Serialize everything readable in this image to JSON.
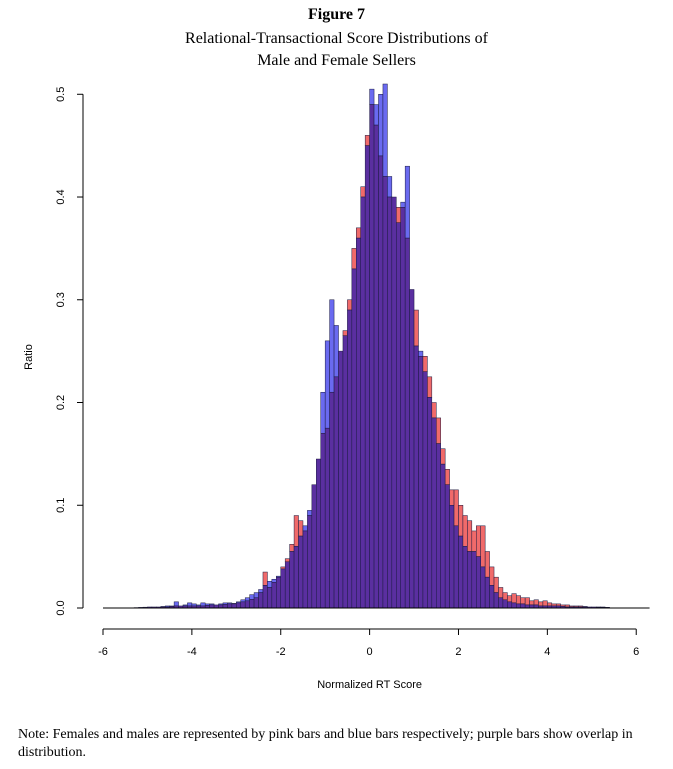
{
  "figure": {
    "label": "Figure 7",
    "title_line1": "Relational-Transactional Score Distributions of",
    "title_line2": "Male and Female Sellers",
    "note": "Note: Females and males are represented by pink bars and blue bars respectively; purple bars show overlap in distribution."
  },
  "colors": {
    "female": "#f06a6a",
    "male": "#6a6af0",
    "overlap": "#5a2fa0",
    "edge": "#1a1a40"
  },
  "chart_data": {
    "type": "bar",
    "title": "Relational-Transactional Score Distributions of Male and Female Sellers",
    "xlabel": "Normalized RT Score",
    "ylabel": "Ratio",
    "xlim": [
      -6,
      6.4
    ],
    "ylim": [
      0,
      0.51
    ],
    "xticks": [
      "-6",
      "-4",
      "-2",
      "0",
      "2",
      "4",
      "6"
    ],
    "yticks": [
      "0.0",
      "0.1",
      "0.2",
      "0.3",
      "0.4",
      "0.5"
    ],
    "bin_width": 0.1,
    "series": [
      {
        "name": "Females",
        "points": [
          [
            -6.0,
            0.0
          ],
          [
            -5.5,
            0.0
          ],
          [
            -5.0,
            0.001
          ],
          [
            -4.8,
            0.001
          ],
          [
            -4.6,
            0.001
          ],
          [
            -4.4,
            0.002
          ],
          [
            -4.2,
            0.002
          ],
          [
            -4.0,
            0.002
          ],
          [
            -3.8,
            0.002
          ],
          [
            -3.6,
            0.003
          ],
          [
            -3.4,
            0.003
          ],
          [
            -3.2,
            0.004
          ],
          [
            -3.0,
            0.005
          ],
          [
            -2.8,
            0.007
          ],
          [
            -2.6,
            0.01
          ],
          [
            -2.5,
            0.015
          ],
          [
            -2.4,
            0.035
          ],
          [
            -2.3,
            0.02
          ],
          [
            -2.2,
            0.025
          ],
          [
            -2.1,
            0.03
          ],
          [
            -2.0,
            0.04
          ],
          [
            -1.9,
            0.048
          ],
          [
            -1.8,
            0.062
          ],
          [
            -1.7,
            0.09
          ],
          [
            -1.6,
            0.085
          ],
          [
            -1.5,
            0.075
          ],
          [
            -1.4,
            0.09
          ],
          [
            -1.3,
            0.12
          ],
          [
            -1.2,
            0.145
          ],
          [
            -1.1,
            0.17
          ],
          [
            -1.0,
            0.175
          ],
          [
            -0.9,
            0.21
          ],
          [
            -0.8,
            0.225
          ],
          [
            -0.7,
            0.25
          ],
          [
            -0.6,
            0.27
          ],
          [
            -0.5,
            0.3
          ],
          [
            -0.4,
            0.35
          ],
          [
            -0.3,
            0.37
          ],
          [
            -0.2,
            0.41
          ],
          [
            -0.1,
            0.46
          ],
          [
            0.0,
            0.49
          ],
          [
            0.1,
            0.47
          ],
          [
            0.2,
            0.44
          ],
          [
            0.3,
            0.42
          ],
          [
            0.4,
            0.4
          ],
          [
            0.5,
            0.4
          ],
          [
            0.6,
            0.39
          ],
          [
            0.7,
            0.39
          ],
          [
            0.8,
            0.36
          ],
          [
            0.9,
            0.31
          ],
          [
            1.0,
            0.29
          ],
          [
            1.1,
            0.245
          ],
          [
            1.2,
            0.245
          ],
          [
            1.3,
            0.225
          ],
          [
            1.4,
            0.2
          ],
          [
            1.5,
            0.185
          ],
          [
            1.6,
            0.155
          ],
          [
            1.7,
            0.135
          ],
          [
            1.8,
            0.115
          ],
          [
            1.9,
            0.115
          ],
          [
            2.0,
            0.1
          ],
          [
            2.1,
            0.09
          ],
          [
            2.2,
            0.085
          ],
          [
            2.3,
            0.075
          ],
          [
            2.4,
            0.08
          ],
          [
            2.5,
            0.08
          ],
          [
            2.6,
            0.055
          ],
          [
            2.7,
            0.04
          ],
          [
            2.8,
            0.03
          ],
          [
            2.9,
            0.02
          ],
          [
            3.0,
            0.015
          ],
          [
            3.1,
            0.012
          ],
          [
            3.2,
            0.014
          ],
          [
            3.3,
            0.012
          ],
          [
            3.4,
            0.01
          ],
          [
            3.5,
            0.01
          ],
          [
            3.6,
            0.007
          ],
          [
            3.7,
            0.008
          ],
          [
            3.8,
            0.006
          ],
          [
            3.9,
            0.007
          ],
          [
            4.0,
            0.005
          ],
          [
            4.1,
            0.004
          ],
          [
            4.2,
            0.004
          ],
          [
            4.3,
            0.003
          ],
          [
            4.4,
            0.003
          ],
          [
            4.5,
            0.002
          ],
          [
            4.7,
            0.002
          ],
          [
            4.9,
            0.001
          ],
          [
            5.2,
            0.001
          ],
          [
            5.5,
            0.0
          ],
          [
            6.3,
            0.0
          ]
        ]
      },
      {
        "name": "Males",
        "points": [
          [
            -6.0,
            0.0
          ],
          [
            -5.5,
            0.0
          ],
          [
            -5.0,
            0.001
          ],
          [
            -4.8,
            0.001
          ],
          [
            -4.6,
            0.002
          ],
          [
            -4.5,
            0.002
          ],
          [
            -4.4,
            0.006
          ],
          [
            -4.3,
            0.002
          ],
          [
            -4.2,
            0.003
          ],
          [
            -4.1,
            0.005
          ],
          [
            -4.0,
            0.004
          ],
          [
            -3.9,
            0.003
          ],
          [
            -3.8,
            0.005
          ],
          [
            -3.7,
            0.004
          ],
          [
            -3.6,
            0.004
          ],
          [
            -3.5,
            0.003
          ],
          [
            -3.4,
            0.004
          ],
          [
            -3.3,
            0.005
          ],
          [
            -3.2,
            0.005
          ],
          [
            -3.1,
            0.004
          ],
          [
            -3.0,
            0.006
          ],
          [
            -2.9,
            0.008
          ],
          [
            -2.8,
            0.01
          ],
          [
            -2.7,
            0.013
          ],
          [
            -2.6,
            0.015
          ],
          [
            -2.5,
            0.018
          ],
          [
            -2.4,
            0.022
          ],
          [
            -2.3,
            0.026
          ],
          [
            -2.2,
            0.028
          ],
          [
            -2.1,
            0.031
          ],
          [
            -2.0,
            0.038
          ],
          [
            -1.9,
            0.045
          ],
          [
            -1.8,
            0.055
          ],
          [
            -1.7,
            0.06
          ],
          [
            -1.6,
            0.07
          ],
          [
            -1.5,
            0.08
          ],
          [
            -1.4,
            0.095
          ],
          [
            -1.3,
            0.12
          ],
          [
            -1.2,
            0.145
          ],
          [
            -1.1,
            0.21
          ],
          [
            -1.0,
            0.26
          ],
          [
            -0.9,
            0.3
          ],
          [
            -0.8,
            0.275
          ],
          [
            -0.7,
            0.25
          ],
          [
            -0.6,
            0.265
          ],
          [
            -0.5,
            0.29
          ],
          [
            -0.4,
            0.33
          ],
          [
            -0.3,
            0.36
          ],
          [
            -0.2,
            0.4
          ],
          [
            -0.1,
            0.45
          ],
          [
            0.0,
            0.505
          ],
          [
            0.1,
            0.49
          ],
          [
            0.2,
            0.5
          ],
          [
            0.3,
            0.51
          ],
          [
            0.4,
            0.42
          ],
          [
            0.5,
            0.4
          ],
          [
            0.6,
            0.375
          ],
          [
            0.7,
            0.395
          ],
          [
            0.8,
            0.43
          ],
          [
            0.9,
            0.31
          ],
          [
            1.0,
            0.255
          ],
          [
            1.1,
            0.25
          ],
          [
            1.2,
            0.23
          ],
          [
            1.3,
            0.205
          ],
          [
            1.4,
            0.185
          ],
          [
            1.5,
            0.16
          ],
          [
            1.6,
            0.14
          ],
          [
            1.7,
            0.12
          ],
          [
            1.8,
            0.1
          ],
          [
            1.9,
            0.08
          ],
          [
            2.0,
            0.07
          ],
          [
            2.1,
            0.06
          ],
          [
            2.2,
            0.055
          ],
          [
            2.3,
            0.055
          ],
          [
            2.4,
            0.05
          ],
          [
            2.5,
            0.04
          ],
          [
            2.6,
            0.03
          ],
          [
            2.7,
            0.022
          ],
          [
            2.8,
            0.015
          ],
          [
            2.9,
            0.01
          ],
          [
            3.0,
            0.008
          ],
          [
            3.1,
            0.006
          ],
          [
            3.2,
            0.005
          ],
          [
            3.3,
            0.004
          ],
          [
            3.4,
            0.004
          ],
          [
            3.5,
            0.003
          ],
          [
            3.6,
            0.003
          ],
          [
            3.7,
            0.003
          ],
          [
            3.8,
            0.002
          ],
          [
            3.9,
            0.002
          ],
          [
            4.0,
            0.002
          ],
          [
            4.2,
            0.002
          ],
          [
            4.4,
            0.001
          ],
          [
            4.6,
            0.001
          ],
          [
            5.0,
            0.001
          ],
          [
            5.5,
            0.0
          ],
          [
            6.3,
            0.0
          ]
        ]
      }
    ]
  }
}
